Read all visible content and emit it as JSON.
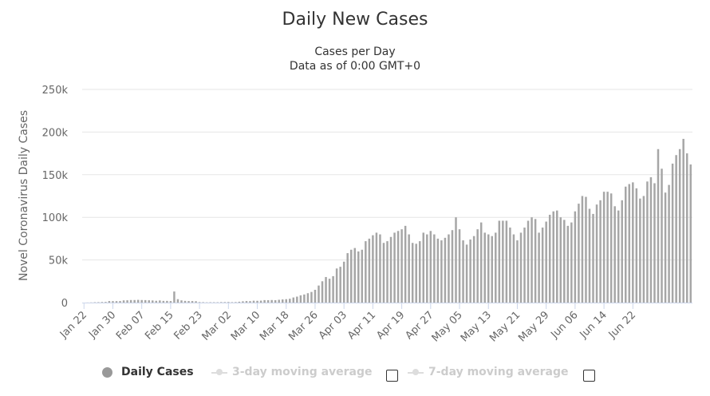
{
  "chart_data": {
    "type": "bar",
    "title": "Daily New Cases",
    "subtitle": [
      "Cases per Day",
      "Data as of 0:00 GMT+0"
    ],
    "ylabel": "Novel Coronavirus Daily Cases",
    "xlabel": "",
    "ylim": [
      0,
      250000
    ],
    "yticks": [
      0,
      50000,
      100000,
      150000,
      200000,
      250000
    ],
    "ytick_labels": [
      "0",
      "50k",
      "100k",
      "150k",
      "200k",
      "250k"
    ],
    "xtick_labels": [
      "Jan 22",
      "Jan 30",
      "Feb 07",
      "Feb 15",
      "Feb 23",
      "Mar 02",
      "Mar 10",
      "Mar 18",
      "Mar 26",
      "Apr 03",
      "Apr 11",
      "Apr 19",
      "Apr 27",
      "May 05",
      "May 13",
      "May 21",
      "May 29",
      "Jun 06",
      "Jun 14",
      "Jun 22"
    ],
    "grid": true,
    "bar_color": "#a6a6a6",
    "categories_start": "Jan 22",
    "series": [
      {
        "name": "Daily Cases",
        "values": [
          0,
          100,
          200,
          400,
          500,
          700,
          800,
          1800,
          1700,
          1700,
          1800,
          2600,
          2700,
          3000,
          3000,
          3200,
          3000,
          2900,
          2700,
          2500,
          2100,
          2500,
          2000,
          2000,
          1800,
          13000,
          4000,
          2600,
          2000,
          1800,
          1800,
          1600,
          600,
          500,
          300,
          400,
          400,
          400,
          600,
          600,
          700,
          500,
          600,
          1000,
          1500,
          1800,
          1700,
          2200,
          2100,
          2300,
          2900,
          2800,
          3000,
          2800,
          3300,
          3700,
          4000,
          4500,
          6000,
          7000,
          8500,
          9500,
          11000,
          12500,
          15000,
          20000,
          25000,
          30000,
          28000,
          31000,
          40000,
          42000,
          48000,
          58000,
          62000,
          64000,
          60000,
          62000,
          72000,
          75000,
          79000,
          82000,
          80000,
          70000,
          72000,
          77000,
          82000,
          84000,
          86000,
          90000,
          80000,
          70000,
          69000,
          72000,
          82000,
          80000,
          84000,
          80000,
          75000,
          73000,
          76000,
          80000,
          85000,
          100000,
          86000,
          73000,
          68000,
          74000,
          78000,
          86000,
          94000,
          82000,
          80000,
          78000,
          82000,
          96000,
          96000,
          96000,
          88000,
          80000,
          73000,
          82000,
          88000,
          96000,
          100000,
          98000,
          82000,
          88000,
          95000,
          103000,
          107000,
          108000,
          100000,
          97000,
          90000,
          94000,
          107000,
          116000,
          125000,
          124000,
          110000,
          104000,
          115000,
          120000,
          130000,
          130000,
          128000,
          113000,
          108000,
          120000,
          136000,
          139000,
          141000,
          134000,
          122000,
          125000,
          142000,
          147000,
          140000,
          180000,
          157000,
          129000,
          138000,
          163000,
          173000,
          180000,
          192000,
          175000,
          162000
        ]
      },
      {
        "name": "3-day moving average",
        "visible": false
      },
      {
        "name": "7-day moving average",
        "visible": false
      }
    ]
  },
  "legend": {
    "items": [
      {
        "label": "Daily Cases",
        "active": true
      },
      {
        "label": "3-day moving average",
        "active": false,
        "checked": false
      },
      {
        "label": "7-day moving average",
        "active": false,
        "checked": false
      }
    ]
  }
}
